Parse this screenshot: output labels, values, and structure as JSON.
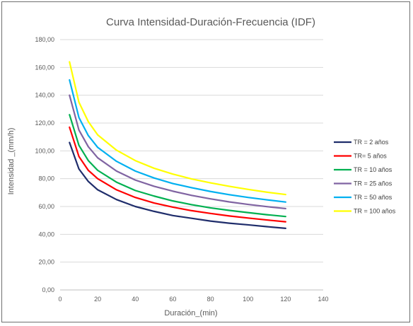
{
  "chart_data": {
    "type": "line",
    "title": "Curva Intensidad-Duración-Frecuencia (IDF)",
    "xlabel": "Duración_(min)",
    "ylabel": "Intensidad _(mm/h)",
    "xlim": [
      0,
      140
    ],
    "ylim": [
      0,
      180
    ],
    "xticks": [
      0,
      20,
      40,
      60,
      80,
      100,
      120,
      140
    ],
    "yticks": [
      "0,00",
      "20,00",
      "40,00",
      "60,00",
      "80,00",
      "100,00",
      "120,00",
      "140,00",
      "160,00",
      "180,00"
    ],
    "grid": "horizontal",
    "legend_position": "right",
    "x": [
      5,
      10,
      15,
      20,
      30,
      40,
      50,
      60,
      70,
      80,
      90,
      100,
      110,
      120
    ],
    "series": [
      {
        "name": "TR = 2 años",
        "color": "#1f2d6b",
        "values": [
          106,
          87,
          78,
          72,
          65,
          60,
          56.5,
          53.5,
          51.5,
          49.5,
          48,
          46.8,
          45.5,
          44.3
        ]
      },
      {
        "name": "TR= 5 años",
        "color": "#ff0000",
        "values": [
          117,
          96,
          86,
          80,
          72,
          66.5,
          62.5,
          59.5,
          57,
          55,
          53.2,
          51.7,
          50.3,
          49
        ]
      },
      {
        "name": "TR = 10 años",
        "color": "#00b050",
        "values": [
          126,
          104,
          93,
          86,
          77.5,
          71.5,
          67.5,
          64,
          61.3,
          59,
          57.2,
          55.6,
          54.1,
          52.8
        ]
      },
      {
        "name": "TR = 25 años",
        "color": "#8064a2",
        "values": [
          140,
          115,
          103,
          95,
          85.5,
          79,
          74.5,
          71,
          68,
          65.5,
          63.3,
          61.5,
          59.9,
          58.5
        ]
      },
      {
        "name": "TR = 50 años",
        "color": "#00b0f0",
        "values": [
          151,
          124,
          111,
          102.5,
          92.5,
          85.5,
          80.5,
          76.5,
          73.5,
          70.8,
          68.5,
          66.5,
          64.8,
          63.2
        ]
      },
      {
        "name": "TR = 100 años",
        "color": "#ffff00",
        "values": [
          164,
          135,
          121,
          111.5,
          100.5,
          93,
          87.5,
          83.3,
          79.8,
          77,
          74.5,
          72.3,
          70.3,
          68.6
        ]
      }
    ]
  }
}
